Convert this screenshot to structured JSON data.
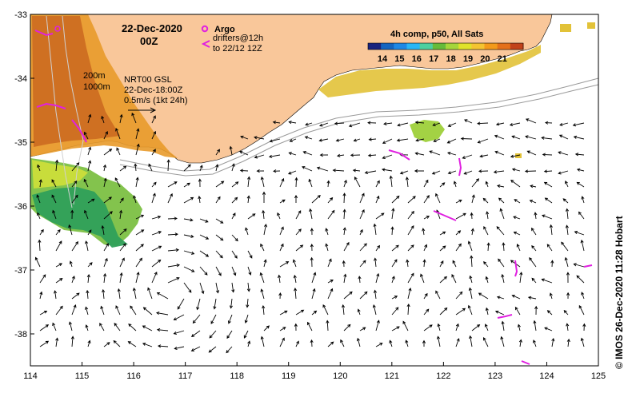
{
  "map": {
    "date": "22-Dec-2020",
    "time": "00Z",
    "legend": {
      "argo_label": "Argo",
      "drifters_label": "drifters@12h",
      "drifters_to": "to 22/12 12Z"
    },
    "colorbar": {
      "title": "4h comp, p50, All Sats",
      "ticks": [
        "14",
        "15",
        "16",
        "17",
        "18",
        "19",
        "20",
        "21"
      ],
      "colors": [
        "#1a237e",
        "#1565c0",
        "#1e88e5",
        "#29b6f6",
        "#4dd0a0",
        "#66bb3a",
        "#a5d63a",
        "#e0e22a",
        "#f4c430",
        "#f39a1a",
        "#e4701a",
        "#c2421a"
      ]
    },
    "isobaths": [
      "200m",
      "1000m"
    ],
    "velocity_source": "NRT00 GSL",
    "velocity_time": "22-Dec-18:00Z",
    "scale_label": "0.5m/s (1kt 24h)",
    "credit": "© IMOS 26-Dec-2020 11:28 Hobart",
    "x_ticks": [
      "114",
      "115",
      "116",
      "117",
      "118",
      "119",
      "120",
      "121",
      "122",
      "123",
      "124",
      "125"
    ],
    "y_ticks": [
      "-33",
      "-34",
      "-35",
      "-36",
      "-37",
      "-38"
    ],
    "lon_range": [
      114,
      125
    ],
    "lat_range": [
      -38.5,
      -33
    ]
  }
}
